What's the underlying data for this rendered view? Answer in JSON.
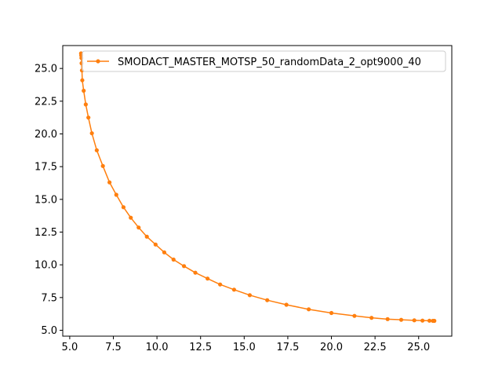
{
  "chart_data": {
    "type": "line",
    "title": "",
    "xlabel": "",
    "ylabel": "",
    "xlim": [
      4.6,
      26.9
    ],
    "ylim": [
      4.55,
      26.75
    ],
    "xticks": [
      5.0,
      7.5,
      10.0,
      12.5,
      15.0,
      17.5,
      20.0,
      22.5,
      25.0
    ],
    "xtick_labels": [
      "5.0",
      "7.5",
      "10.0",
      "12.5",
      "15.0",
      "17.5",
      "20.0",
      "22.5",
      "25.0"
    ],
    "yticks": [
      5.0,
      7.5,
      10.0,
      12.5,
      15.0,
      17.5,
      20.0,
      22.5,
      25.0
    ],
    "ytick_labels": [
      "5.0",
      "7.5",
      "10.0",
      "12.5",
      "15.0",
      "17.5",
      "20.0",
      "22.5",
      "25.0"
    ],
    "grid": false,
    "legend": {
      "position": "top-right"
    },
    "series": [
      {
        "name": "SMODACT_MASTER_MOTSP_50_randomData_2_opt9000_40",
        "color": "#ff7f0e",
        "marker": "circle",
        "x": [
          5.65,
          5.66,
          5.67,
          5.68,
          5.7,
          5.72,
          5.8,
          5.92,
          6.07,
          6.27,
          6.55,
          6.9,
          7.28,
          7.67,
          8.08,
          8.5,
          8.95,
          9.42,
          9.92,
          10.42,
          10.95,
          11.55,
          12.2,
          12.9,
          13.62,
          14.42,
          15.32,
          16.32,
          17.42,
          18.7,
          20.0,
          21.32,
          22.3,
          23.22,
          24.0,
          24.75,
          25.22,
          25.62,
          25.82,
          25.9
        ],
        "y": [
          26.15,
          26.0,
          25.8,
          25.4,
          24.85,
          24.1,
          23.3,
          22.25,
          21.25,
          20.05,
          18.75,
          17.55,
          16.3,
          15.35,
          14.4,
          13.6,
          12.85,
          12.15,
          11.55,
          10.95,
          10.4,
          9.9,
          9.4,
          8.95,
          8.5,
          8.1,
          7.68,
          7.3,
          6.95,
          6.6,
          6.32,
          6.1,
          5.95,
          5.85,
          5.8,
          5.76,
          5.74,
          5.73,
          5.72,
          5.72
        ]
      }
    ]
  }
}
